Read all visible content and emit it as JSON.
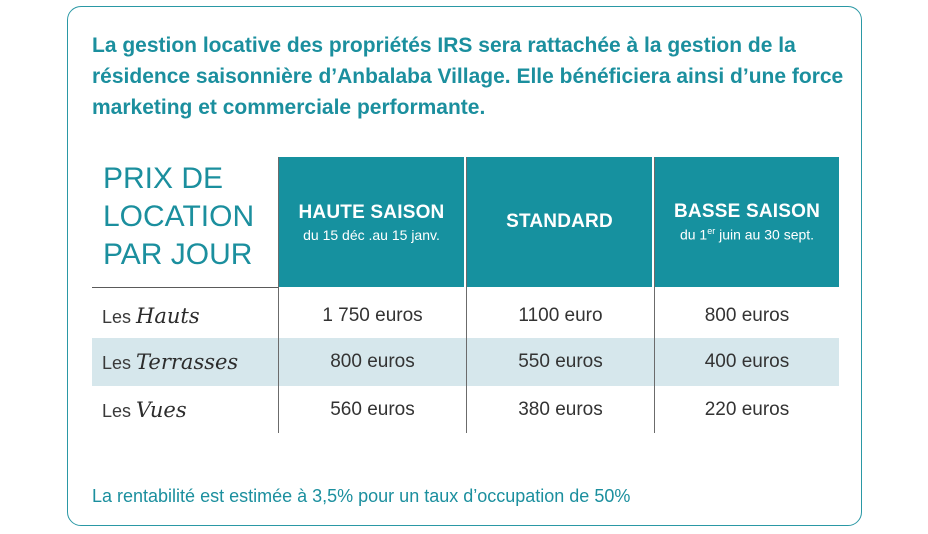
{
  "intro": "La gestion locative des propriétés IRS sera rattachée à la gestion de la résidence saisonnière d’Anbalaba Village. Elle bénéficiera ainsi d’une force marketing et commerciale performante.",
  "table": {
    "title_lines": [
      "PRIX DE",
      "LOCATION",
      "PAR JOUR"
    ],
    "headers": [
      {
        "label": "HAUTE SAISON",
        "sub_before": "du 15 déc .au 15 janv.",
        "sup": "",
        "sub_after": ""
      },
      {
        "label": "STANDARD",
        "sub_before": "",
        "sup": "",
        "sub_after": ""
      },
      {
        "label": "BASSE SAISON",
        "sub_before": "du 1",
        "sup": "er",
        "sub_after": " juin au 30 sept."
      }
    ],
    "rows": [
      {
        "prefix": "Les",
        "name": "Hauts",
        "prices": [
          "1 750 euros",
          "1100 euro",
          "800 euros"
        ]
      },
      {
        "prefix": "Les",
        "name": "Terrasses",
        "prices": [
          "800 euros",
          "550 euros",
          "400 euros"
        ]
      },
      {
        "prefix": "Les",
        "name": "Vues",
        "prices": [
          "560 euros",
          "380 euros",
          "220 euros"
        ]
      }
    ]
  },
  "footer": "La rentabilité est estimée à 3,5% pour un taux d’occupation de 50%",
  "colors": {
    "accent": "#16919f",
    "row_shade": "#d6e7ec",
    "text": "#333333"
  }
}
